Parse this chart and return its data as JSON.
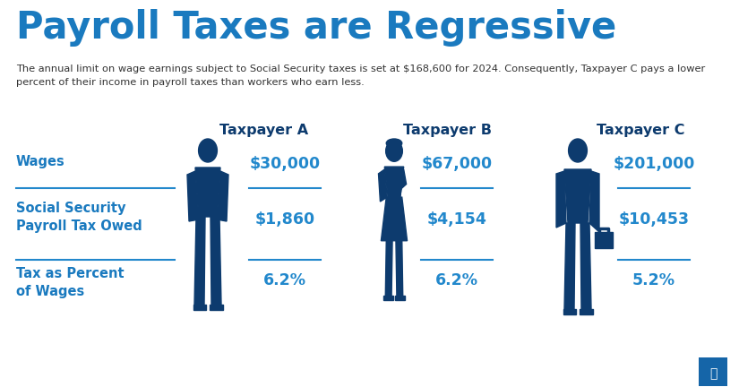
{
  "title": "Payroll Taxes are Regressive",
  "subtitle": "The annual limit on wage earnings subject to Social Security taxes is set at $168,600 for 2024. Consequently, Taxpayer C pays a lower\npercent of their income in payroll taxes than workers who earn less.",
  "background_color": "#ffffff",
  "title_color": "#1a7abf",
  "subtitle_color": "#333333",
  "blue_dark": "#0d3b6e",
  "blue_mid": "#1565a8",
  "blue_light": "#2288cc",
  "taxpayers": [
    "Taxpayer A",
    "Taxpayer B",
    "Taxpayer C"
  ],
  "wages": [
    "$30,000",
    "$67,000",
    "$201,000"
  ],
  "payroll_tax": [
    "$1,860",
    "$4,154",
    "$10,453"
  ],
  "tax_percent": [
    "6.2%",
    "6.2%",
    "5.2%"
  ],
  "row_labels": [
    "Wages",
    "Social Security\nPayroll Tax Owed",
    "Tax as Percent\nof Wages"
  ],
  "row_label_color": "#1a7abf",
  "value_color": "#2288cc",
  "header_color": "#0d3b6e",
  "silhouette_color": "#0d3b6e",
  "line_color": "#2288cc"
}
